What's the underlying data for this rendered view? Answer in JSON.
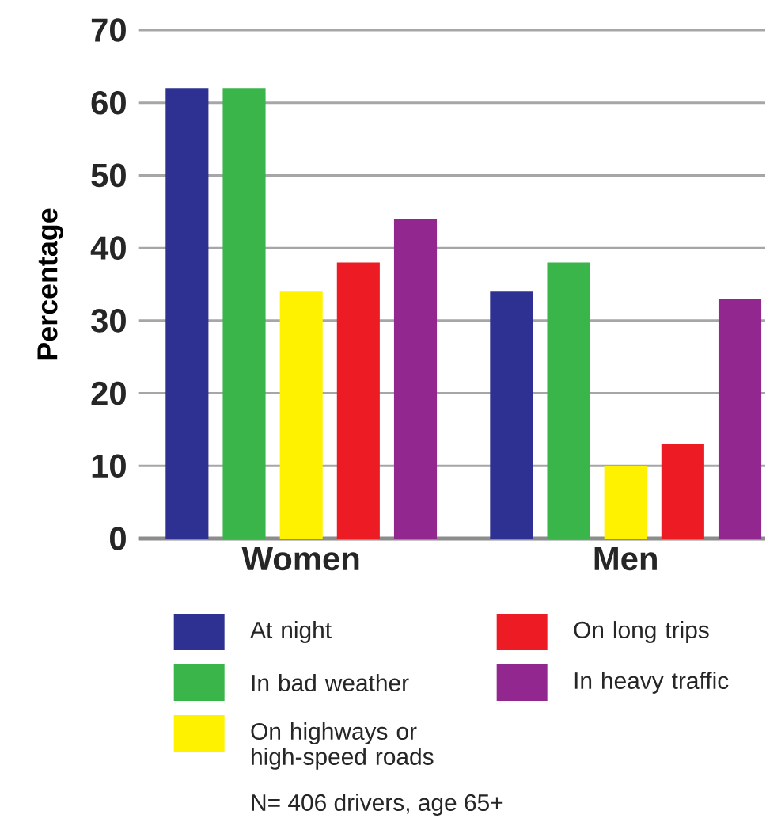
{
  "chart_data": {
    "type": "bar",
    "ylabel": "Percentage",
    "categories": [
      "Women",
      "Men"
    ],
    "series": [
      {
        "name": "At night",
        "color": "#2e3192",
        "values": [
          62,
          34
        ]
      },
      {
        "name": "In bad weather",
        "color": "#39b54a",
        "values": [
          62,
          38
        ]
      },
      {
        "name": "On highways or high-speed roads",
        "color": "#fff200",
        "values": [
          34,
          10
        ]
      },
      {
        "name": "On long trips",
        "color": "#ed1c24",
        "values": [
          38,
          13
        ]
      },
      {
        "name": "In heavy traffic",
        "color": "#92278f",
        "values": [
          44,
          33
        ]
      }
    ],
    "ylim": [
      0,
      70
    ],
    "yticks": [
      0,
      10,
      20,
      30,
      40,
      50,
      60,
      70
    ],
    "grid": "y",
    "legend": "bottom",
    "annotations": [
      "N= 406 drivers, age 65+"
    ]
  }
}
